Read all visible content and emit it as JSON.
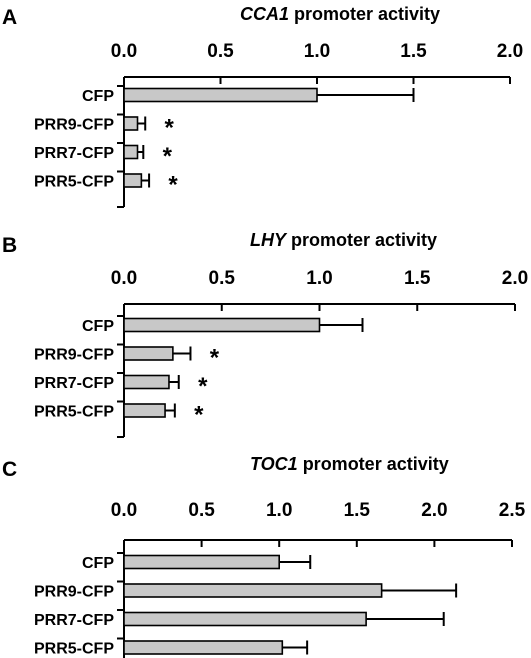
{
  "chart_data": [
    {
      "type": "bar",
      "orientation": "horizontal",
      "panel": "A",
      "title_gene": "CCA1",
      "title_rest": " promoter activity",
      "categories": [
        "CFP",
        "PRR9-CFP",
        "PRR7-CFP",
        "PRR5-CFP"
      ],
      "values": [
        1.0,
        0.07,
        0.07,
        0.09
      ],
      "error": [
        0.5,
        0.04,
        0.03,
        0.04
      ],
      "significant": [
        "",
        "*",
        "*",
        "*"
      ],
      "xlim": [
        0,
        2.0
      ],
      "ticks": [
        "0.0",
        "0.5",
        "1.0",
        "1.5",
        "2.0"
      ],
      "tick_values": [
        0,
        0.5,
        1.0,
        1.5,
        2.0
      ]
    },
    {
      "type": "bar",
      "orientation": "horizontal",
      "panel": "B",
      "title_gene": "LHY",
      "title_rest": " promoter activity",
      "categories": [
        "CFP",
        "PRR9-CFP",
        "PRR7-CFP",
        "PRR5-CFP"
      ],
      "values": [
        1.0,
        0.25,
        0.23,
        0.21
      ],
      "error": [
        0.22,
        0.09,
        0.05,
        0.05
      ],
      "significant": [
        "",
        "*",
        "*",
        "*"
      ],
      "xlim": [
        0,
        2.0
      ],
      "ticks": [
        "0.0",
        "0.5",
        "1.0",
        "1.5",
        "2.0"
      ],
      "tick_values": [
        0,
        0.5,
        1.0,
        1.5,
        2.0
      ]
    },
    {
      "type": "bar",
      "orientation": "horizontal",
      "panel": "C",
      "title_gene": "TOC1",
      "title_rest": " promoter activity",
      "categories": [
        "CFP",
        "PRR9-CFP",
        "PRR7-CFP",
        "PRR5-CFP"
      ],
      "values": [
        1.0,
        1.66,
        1.56,
        1.02
      ],
      "error": [
        0.2,
        0.48,
        0.5,
        0.16
      ],
      "significant": [
        "",
        "",
        "",
        ""
      ],
      "xlim": [
        0,
        2.5
      ],
      "ticks": [
        "0.0",
        "0.5",
        "1.0",
        "1.5",
        "2.0",
        "2.5"
      ],
      "tick_values": [
        0,
        0.5,
        1.0,
        1.5,
        2.0,
        2.5
      ]
    }
  ]
}
